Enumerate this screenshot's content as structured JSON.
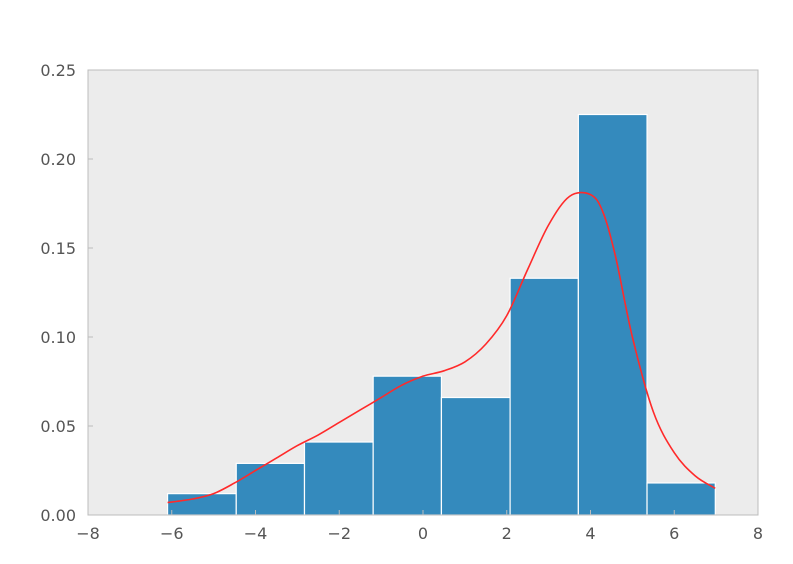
{
  "chart_data": {
    "type": "bar",
    "title": "",
    "xlabel": "",
    "ylabel": "",
    "xlim": [
      -8,
      8
    ],
    "ylim": [
      0,
      0.25
    ],
    "x_ticks": [
      -8,
      -6,
      -4,
      -2,
      0,
      2,
      4,
      6,
      8
    ],
    "x_tick_labels": [
      "−8",
      "−6",
      "−4",
      "−2",
      "0",
      "2",
      "4",
      "6",
      "8"
    ],
    "y_ticks": [
      0,
      0.05,
      0.1,
      0.15,
      0.2,
      0.25
    ],
    "y_tick_labels": [
      "0.00",
      "0.05",
      "0.10",
      "0.15",
      "0.20",
      "0.25"
    ],
    "grid": false,
    "bin_edges": [
      -6.1,
      -4.46,
      -2.83,
      -1.19,
      0.44,
      2.08,
      3.71,
      5.35,
      6.98
    ],
    "values": [
      0.012,
      0.029,
      0.041,
      0.078,
      0.066,
      0.133,
      0.225,
      0.018
    ],
    "density_curve": {
      "x": [
        -6.1,
        -5.5,
        -5.0,
        -4.5,
        -4.0,
        -3.5,
        -3.0,
        -2.5,
        -2.0,
        -1.5,
        -1.0,
        -0.5,
        0.0,
        0.5,
        1.0,
        1.5,
        2.0,
        2.5,
        3.0,
        3.5,
        4.0,
        4.3,
        4.6,
        5.0,
        5.5,
        6.0,
        6.5,
        6.98
      ],
      "y": [
        0.007,
        0.009,
        0.012,
        0.018,
        0.025,
        0.032,
        0.039,
        0.045,
        0.052,
        0.059,
        0.066,
        0.073,
        0.078,
        0.081,
        0.086,
        0.096,
        0.112,
        0.138,
        0.163,
        0.179,
        0.18,
        0.17,
        0.145,
        0.1,
        0.058,
        0.035,
        0.022,
        0.015
      ]
    },
    "colors": {
      "bar": "#348abd",
      "bar_edge": "#ffffff",
      "curve": "#ff2a2a",
      "plot_background": "#ececec",
      "frame": "#bcbcbc",
      "tick_text": "#555555"
    }
  }
}
